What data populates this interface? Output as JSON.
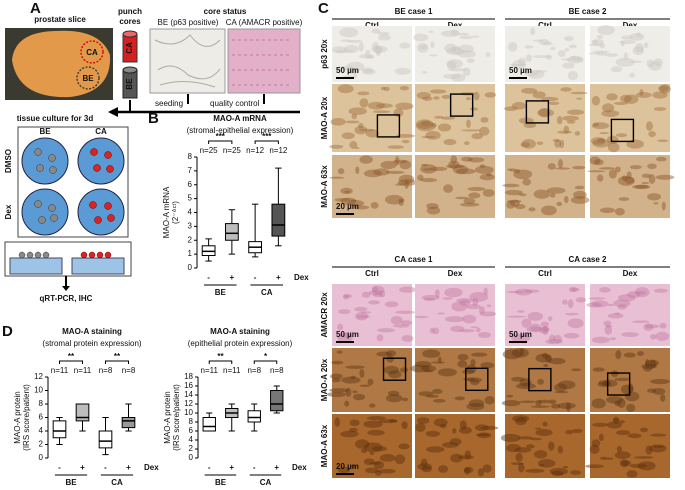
{
  "panels": {
    "A": {
      "letter": "A",
      "prostate_slice": "prostate slice",
      "punch_cores": [
        "punch",
        "cores"
      ],
      "core_status": "core status",
      "be_label": "BE (p63 positive)",
      "ca_label": "CA (AMACR positive)",
      "photo_ca": "CA",
      "photo_be": "BE",
      "core_ca": "CA",
      "core_be": "BE",
      "seeding": "seeding",
      "quality_control": "quality control",
      "culture": "tissue culture for 3d",
      "columns": [
        "BE",
        "CA"
      ],
      "rows": [
        "DMSO",
        "Dex"
      ],
      "readout": "qRT-PCR, IHC"
    },
    "C": {
      "letter": "C",
      "sections": [
        {
          "cases": [
            "BE case 1",
            "BE case 2"
          ],
          "columns": [
            "Ctrl",
            "Dex",
            "Ctrl",
            "Dex"
          ],
          "rows": [
            "p63 20x",
            "MAO-A 20x",
            "MAO-A 63x"
          ],
          "scale_bars": [
            "50 µm",
            "20 µm"
          ]
        },
        {
          "cases": [
            "CA case 1",
            "CA case 2"
          ],
          "columns": [
            "Ctrl",
            "Dex",
            "Ctrl",
            "Dex"
          ],
          "rows": [
            "AMACR 20x",
            "MAO-A 20x",
            "MAO-A 63x"
          ],
          "scale_bars": [
            "50 µm",
            "20 µm"
          ]
        }
      ]
    }
  },
  "chart_data": [
    {
      "type": "box",
      "letter": "B",
      "title": "MAO-A mRNA",
      "subtitle": "(stromal-epithelial expression)",
      "ylabel": "MAO-A mRNA",
      "ylabel2": "(2⁻ᐞᶜᵗ)",
      "groups": [
        "BE",
        "CA"
      ],
      "categories": [
        "-",
        "+",
        "-",
        "+"
      ],
      "treatment_label": "Dex",
      "n_labels": [
        "n=25",
        "n=25",
        "n=12",
        "n=12"
      ],
      "significance": [
        "***",
        "***"
      ],
      "min": [
        0.5,
        1.0,
        0.8,
        1.6
      ],
      "q1": [
        0.9,
        2.0,
        1.1,
        2.3
      ],
      "median": [
        1.2,
        2.5,
        1.5,
        3.1
      ],
      "q3": [
        1.6,
        3.2,
        1.9,
        4.6
      ],
      "max": [
        2.1,
        4.2,
        4.6,
        7.2
      ],
      "colors": [
        "#ffffff",
        "#bdbdbd",
        "#ffffff",
        "#555555"
      ],
      "ylim": [
        0,
        8
      ],
      "yticks": [
        0,
        1,
        2,
        3,
        4,
        5,
        6,
        7,
        8
      ]
    },
    {
      "type": "box",
      "letter": "D",
      "title": "MAO-A staining",
      "subtitle": "(stromal protein expression)",
      "ylabel": "MAO-A protein",
      "ylabel2": "(IRS score/patient)",
      "groups": [
        "BE",
        "CA"
      ],
      "categories": [
        "-",
        "+",
        "-",
        "+"
      ],
      "treatment_label": "Dex",
      "n_labels": [
        "n=11",
        "n=11",
        "n=8",
        "n=8"
      ],
      "significance": [
        "**",
        "**"
      ],
      "min": [
        2,
        4,
        0.5,
        4
      ],
      "q1": [
        3,
        5.5,
        1.5,
        4.5
      ],
      "median": [
        4,
        6,
        2.5,
        5.5
      ],
      "q3": [
        5.5,
        8,
        4,
        6
      ],
      "max": [
        6,
        8,
        6,
        8
      ],
      "colors": [
        "#ffffff",
        "#bdbdbd",
        "#ffffff",
        "#999999"
      ],
      "ylim": [
        0,
        12
      ],
      "yticks": [
        0,
        2,
        4,
        6,
        8,
        10,
        12
      ]
    },
    {
      "type": "box",
      "title": "MAO-A staining",
      "subtitle": "(epithelial protein expression)",
      "ylabel": "MAO-A protein",
      "ylabel2": "(IRS score/patient)",
      "groups": [
        "BE",
        "CA"
      ],
      "categories": [
        "-",
        "+",
        "-",
        "+"
      ],
      "treatment_label": "Dex",
      "n_labels": [
        "n=11",
        "n=11",
        "n=8",
        "n=8"
      ],
      "significance": [
        "**",
        "*"
      ],
      "min": [
        6,
        6,
        6,
        10
      ],
      "q1": [
        6,
        9,
        8,
        10.5
      ],
      "median": [
        7,
        10,
        9,
        12
      ],
      "q3": [
        9,
        11,
        10.5,
        15
      ],
      "max": [
        10,
        12,
        12,
        16
      ],
      "colors": [
        "#ffffff",
        "#bdbdbd",
        "#ffffff",
        "#777777"
      ],
      "ylim": [
        0,
        18
      ],
      "yticks": [
        0,
        2,
        4,
        6,
        8,
        10,
        12,
        14,
        16,
        18
      ]
    }
  ]
}
